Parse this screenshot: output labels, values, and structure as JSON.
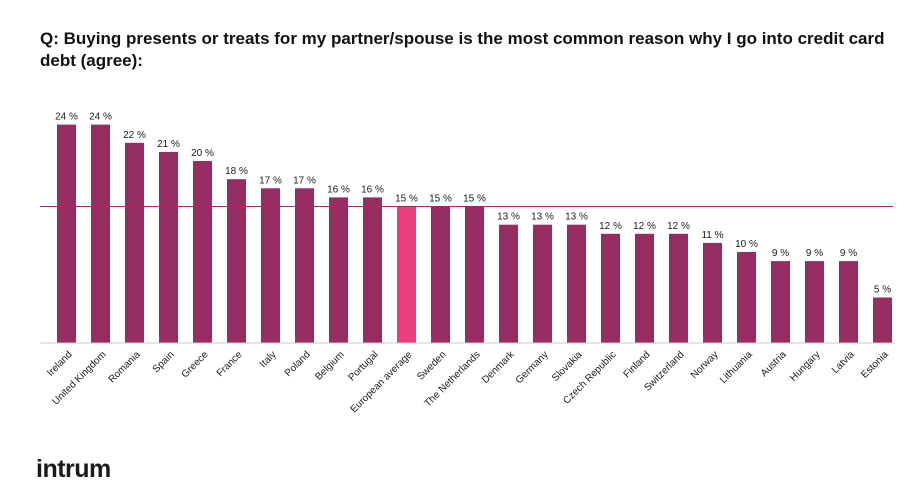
{
  "title": "Q: Buying presents or treats for my partner/spouse is the most common reason why I go into credit card debt (agree):",
  "logo_text": "intrum",
  "chart_data": {
    "type": "bar",
    "categories": [
      "Ireland",
      "United Kingdom",
      "Romania",
      "Spain",
      "Greece",
      "France",
      "Italy",
      "Poland",
      "Belgium",
      "Portugal",
      "European average",
      "Sweden",
      "The Netherlands",
      "Denmark",
      "Germany",
      "Slovakia",
      "Czech Republic",
      "Finland",
      "Switzerland",
      "Norway",
      "Lithuania",
      "Austria",
      "Hungary",
      "Latvia",
      "Estonia"
    ],
    "values": [
      24,
      24,
      22,
      21,
      20,
      18,
      17,
      17,
      16,
      16,
      15,
      15,
      15,
      13,
      13,
      13,
      12,
      12,
      12,
      11,
      10,
      9,
      9,
      9,
      5
    ],
    "value_suffix": " %",
    "reference_line": 15,
    "highlight_category": "European average",
    "ylim": [
      0,
      25
    ],
    "colors": {
      "bar": "#962d62",
      "highlight": "#e83e7e",
      "reference_line": "#b0245f",
      "axis": "#cccccc"
    },
    "grid": false,
    "legend": "none"
  }
}
